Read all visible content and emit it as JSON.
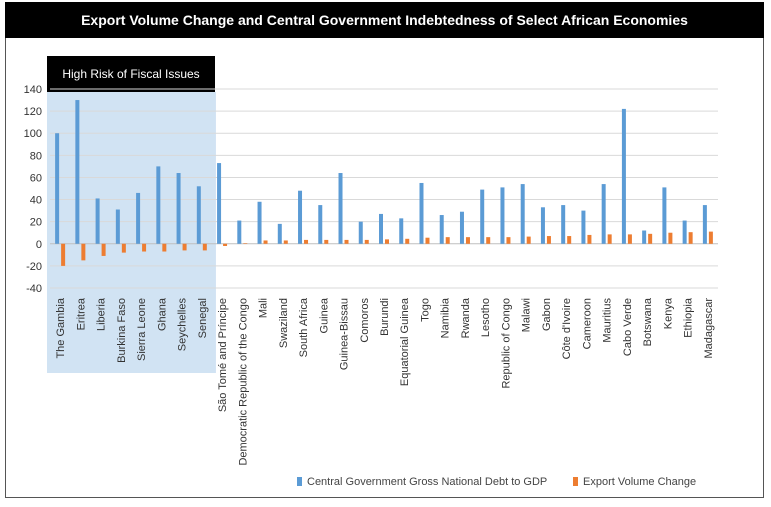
{
  "chart_data": {
    "type": "bar",
    "title": "Export Volume Change and Central Government Indebtedness of Select African Economies",
    "annotation": "High Risk of Fiscal Issues",
    "highlighted_count": 8,
    "xlabel": "",
    "ylabel": "",
    "ylim": [
      -40,
      140
    ],
    "yticks": [
      -40,
      -20,
      0,
      20,
      40,
      60,
      80,
      100,
      120,
      140
    ],
    "grid": true,
    "legend_position": "bottom",
    "categories": [
      "The Gambia",
      "Eritrea",
      "Liberia",
      "Burkina Faso",
      "Sierra Leone",
      "Ghana",
      "Seychelles",
      "Senegal",
      "São Tomé and Príncipe",
      "Democratic Republic of the Congo",
      "Mali",
      "Swaziland",
      "South Africa",
      "Guinea",
      "Guinea-Bissau",
      "Comoros",
      "Burundi",
      "Equatorial Guinea",
      "Togo",
      "Namibia",
      "Rwanda",
      "Lesotho",
      "Republic of Congo",
      "Malawi",
      "Gabon",
      "Côte d'Ivoire",
      "Cameroon",
      "Mauritius",
      "Cabo Verde",
      "Botswana",
      "Kenya",
      "Ethiopia",
      "Madagascar"
    ],
    "series": [
      {
        "name": "Central Government Gross National Debt to GDP",
        "color": "#5b9bd5",
        "values": [
          100,
          130,
          41,
          31,
          46,
          70,
          64,
          52,
          73,
          21,
          38,
          18,
          48,
          35,
          64,
          20,
          27,
          23,
          55,
          26,
          29,
          49,
          51,
          54,
          33,
          35,
          30,
          54,
          122,
          12,
          51,
          21,
          35
        ]
      },
      {
        "name": "Export Volume Change",
        "color": "#ed7d31",
        "values": [
          -20,
          -15,
          -11,
          -8,
          -7,
          -7,
          -6,
          -6,
          -2,
          0.5,
          3,
          3,
          3.5,
          3.5,
          3.5,
          3.5,
          4,
          4.5,
          5.5,
          6,
          6,
          6,
          6,
          6.5,
          7,
          7,
          8,
          8.5,
          8.5,
          9,
          10,
          10.5,
          11
        ]
      }
    ]
  }
}
